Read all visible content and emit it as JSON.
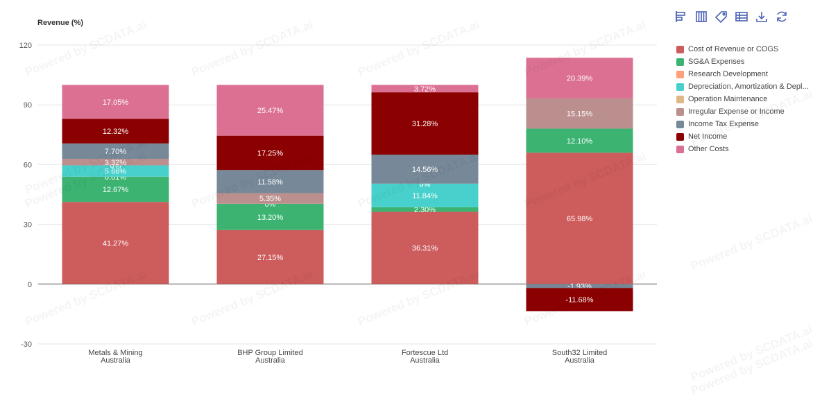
{
  "chart_data": {
    "type": "bar",
    "stacked": true,
    "title": "",
    "ylabel": "Revenue (%)",
    "xlabel": "",
    "ylim": [
      -30,
      120
    ],
    "yticks": [
      "120",
      "90",
      "60",
      "30",
      "0",
      "-30"
    ],
    "ytick_values": [
      120,
      90,
      60,
      30,
      0,
      -30
    ],
    "categories": [
      [
        "Metals & Mining",
        "Australia"
      ],
      [
        "BHP Group Limited",
        "Australia"
      ],
      [
        "Fortescue Ltd",
        "Australia"
      ],
      [
        "South32 Limited",
        "Australia"
      ]
    ],
    "legend_position": "right",
    "series": [
      {
        "name": "Cost of Revenue or COGS",
        "color": "#cd5c5c",
        "values": [
          41.27,
          27.15,
          36.31,
          65.98
        ],
        "labels": [
          "41.27%",
          "27.15%",
          "36.31%",
          "65.98%"
        ]
      },
      {
        "name": "SG&A Expenses",
        "color": "#3cb371",
        "values": [
          12.67,
          13.2,
          2.3,
          12.1
        ],
        "labels": [
          "12.67%",
          "13.20%",
          "2.30%",
          "12.10%"
        ]
      },
      {
        "name": "Research Development",
        "color": "#ffa07a",
        "values": [
          0.01,
          0,
          0,
          0
        ],
        "labels": [
          "0.01%",
          "",
          "",
          ""
        ]
      },
      {
        "name": "Depreciation, Amortization & Depl...",
        "color": "#48d1cc",
        "values": [
          5.66,
          0,
          11.84,
          0
        ],
        "labels": [
          "5.66%",
          "",
          "11.84%",
          ""
        ]
      },
      {
        "name": "Operation Maintenance",
        "color": "#deb887",
        "values": [
          0,
          0,
          0,
          0
        ],
        "labels": [
          "0%",
          "0%",
          "0%",
          ""
        ]
      },
      {
        "name": "Irregular Expense or Income",
        "color": "#bc8f8f",
        "values": [
          3.32,
          5.35,
          0,
          15.15
        ],
        "labels": [
          "3.32%",
          "5.35%",
          "0%",
          "15.15%"
        ]
      },
      {
        "name": "Income Tax Expense",
        "color": "#778899",
        "values": [
          7.7,
          11.58,
          14.56,
          -1.93
        ],
        "labels": [
          "7.70%",
          "11.58%",
          "14.56%",
          "-1.93%"
        ]
      },
      {
        "name": "Net Income",
        "color": "#8b0000",
        "values": [
          12.32,
          17.25,
          31.28,
          -11.68
        ],
        "labels": [
          "12.32%",
          "17.25%",
          "31.28%",
          "-11.68%"
        ]
      },
      {
        "name": "Other Costs",
        "color": "#db7093",
        "values": [
          17.05,
          25.47,
          3.72,
          20.39
        ],
        "labels": [
          "17.05%",
          "25.47%",
          "3.72%",
          "20.39%"
        ]
      }
    ]
  },
  "toolbar": {
    "icons": [
      "horizontal-bar-icon",
      "vertical-bar-icon",
      "tag-icon",
      "table-icon",
      "download-icon",
      "refresh-icon"
    ],
    "icon_color": "#4a5fb5"
  },
  "watermark": "Powered by SCDATA.ai"
}
